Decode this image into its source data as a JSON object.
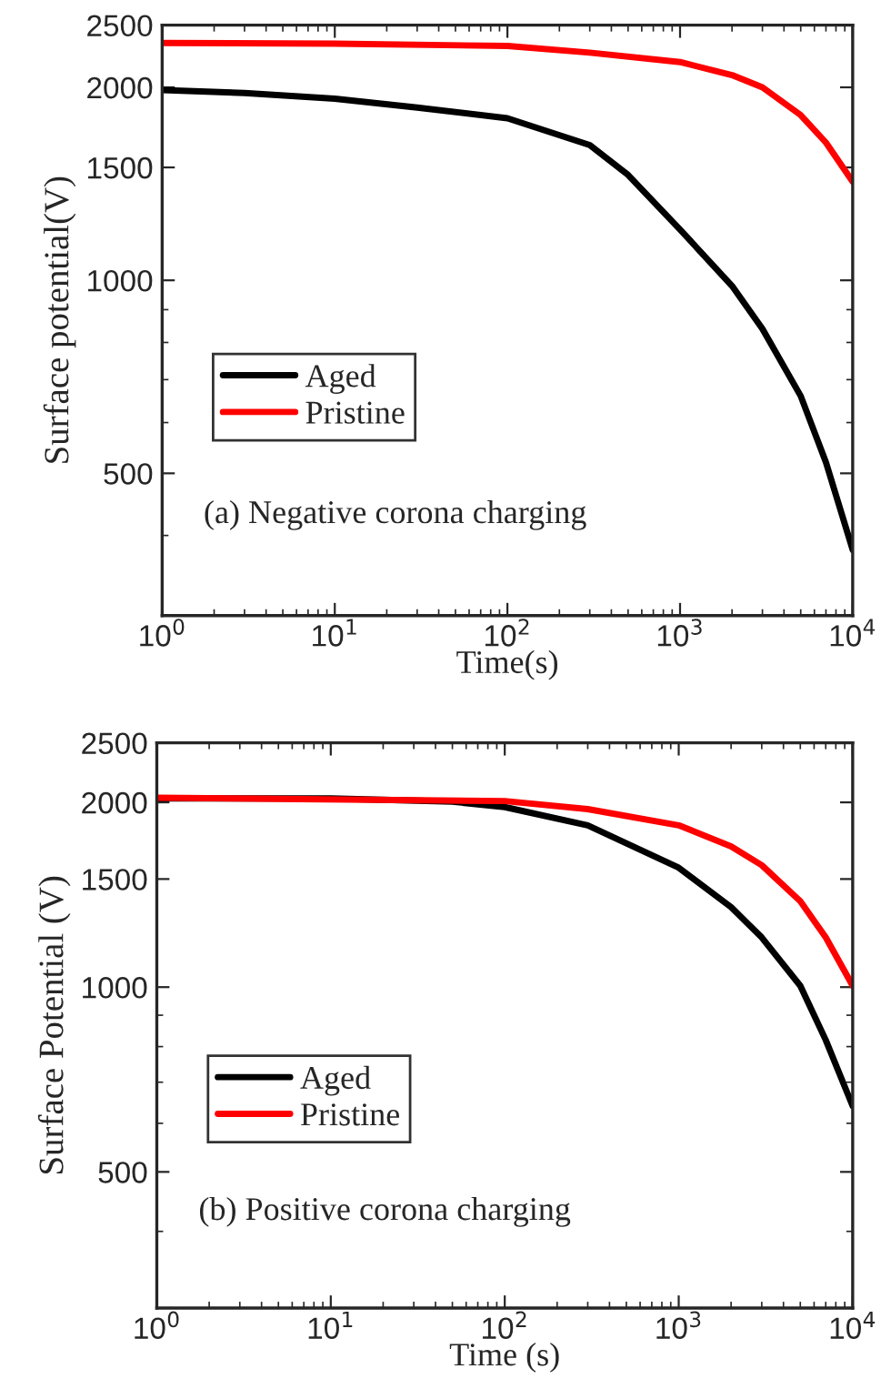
{
  "chart_data": [
    {
      "type": "line",
      "xlabel": "Time(s)",
      "ylabel": "Surface potential(V)",
      "log": "xy",
      "legend": "center left",
      "grid": false,
      "annotations": [
        "(a) Negative corona charging"
      ],
      "xlim": [
        1,
        10000
      ],
      "xticks": [
        {
          "value": 1,
          "label": "10$^{0}$"
        },
        {
          "value": 10,
          "label": "10$^{1}$"
        },
        {
          "value": 100,
          "label": "10$^{2}$"
        },
        {
          "value": 1000,
          "label": "10$^{3}$"
        },
        {
          "value": 10000,
          "label": "10$^{4}$"
        }
      ],
      "ylim": [
        300,
        2500
      ],
      "yticks": [
        500,
        1000,
        1500,
        2000,
        2500
      ],
      "series": [
        {
          "name": "Aged",
          "color": "#000000",
          "x": [
            1,
            3,
            10,
            30,
            100,
            300,
            500,
            1000,
            2000,
            3000,
            5000,
            7000,
            10000
          ],
          "values": [
            1980,
            1960,
            1920,
            1860,
            1790,
            1625,
            1460,
            1200,
            980,
            840,
            660,
            520,
            380
          ]
        },
        {
          "name": "Pristine",
          "color": "#ff0000",
          "x": [
            1,
            10,
            100,
            300,
            1000,
            2000,
            3000,
            5000,
            7000,
            10000
          ],
          "values": [
            2345,
            2340,
            2320,
            2265,
            2190,
            2090,
            2000,
            1810,
            1640,
            1425
          ]
        }
      ]
    },
    {
      "type": "line",
      "xlabel": "Time (s)",
      "ylabel": "Surface Potential (V)",
      "log": "xy",
      "legend": "center left",
      "grid": false,
      "annotations": [
        "(b) Positive corona charging"
      ],
      "xlim": [
        1,
        10000
      ],
      "xticks": [
        {
          "value": 1,
          "label": "10$^{0}$"
        },
        {
          "value": 10,
          "label": "10$^{1}$"
        },
        {
          "value": 100,
          "label": "10$^{2}$"
        },
        {
          "value": 1000,
          "label": "10$^{3}$"
        },
        {
          "value": 10000,
          "label": "10$^{4}$"
        }
      ],
      "ylim": [
        300,
        2500
      ],
      "yticks": [
        500,
        1000,
        1500,
        2000,
        2500
      ],
      "series": [
        {
          "name": "Aged",
          "color": "#000000",
          "x": [
            1,
            10,
            50,
            100,
            300,
            1000,
            2000,
            3000,
            5000,
            7000,
            10000
          ],
          "values": [
            2030,
            2030,
            2005,
            1965,
            1835,
            1565,
            1350,
            1205,
            1005,
            820,
            640
          ]
        },
        {
          "name": "Pristine",
          "color": "#ff0000",
          "x": [
            1,
            100,
            300,
            1000,
            2000,
            3000,
            5000,
            7000,
            10000
          ],
          "values": [
            2035,
            2010,
            1950,
            1835,
            1695,
            1580,
            1380,
            1205,
            1005
          ]
        }
      ]
    }
  ]
}
